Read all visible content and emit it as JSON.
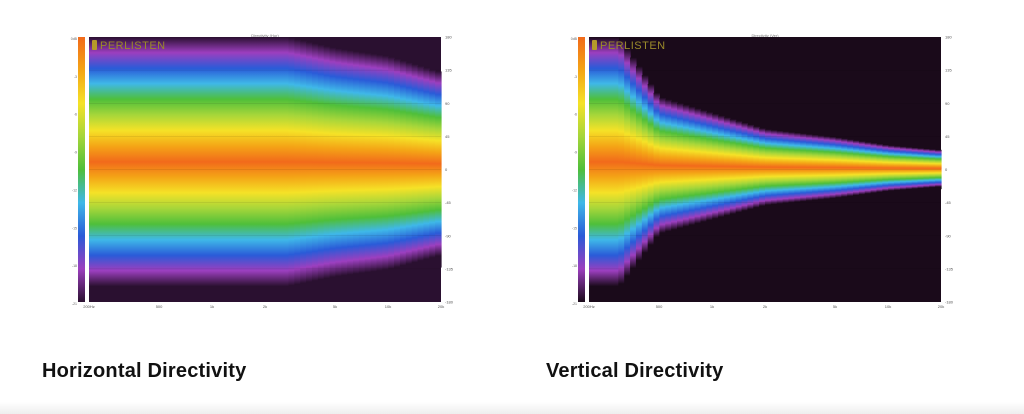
{
  "charts": [
    {
      "id": "horizontal",
      "caption": "Horizontal Directivity",
      "brand": "PERLISTEN"
    },
    {
      "id": "vertical",
      "caption": "Vertical Directivity",
      "brand": "PERLISTEN"
    }
  ],
  "chart_data": [
    {
      "type": "heatmap",
      "title": "Directivity (Hor)",
      "x_ticks": [
        "200Hz",
        "500",
        "1k",
        "2k",
        "5k",
        "10k",
        "20k"
      ],
      "y_ticks": [
        "180",
        "135",
        "90",
        "45",
        "0",
        "-45",
        "-90",
        "-135",
        "-180"
      ],
      "colorbar_ticks": [
        "0dB",
        "-3",
        "-6",
        "-9",
        "-12",
        "-15",
        "-18",
        "-21"
      ],
      "xlim": [
        200,
        20000
      ],
      "ylim": [
        -180,
        180
      ],
      "x_scale": "log",
      "colorscale": [
        "#f26a1b",
        "#f4a516",
        "#f5e227",
        "#a6d63a",
        "#4fbf3a",
        "#3fb8e8",
        "#2a5bd8",
        "#9c3fbf",
        "#2a1030"
      ],
      "coverage_deg": [
        {
          "freq": 200,
          "half_width": 150
        },
        {
          "freq": 500,
          "half_width": 125
        },
        {
          "freq": 1000,
          "half_width": 100
        },
        {
          "freq": 2000,
          "half_width": 85
        },
        {
          "freq": 5000,
          "half_width": 75
        },
        {
          "freq": 10000,
          "half_width": 70
        },
        {
          "freq": 20000,
          "half_width": 60
        }
      ]
    },
    {
      "type": "heatmap",
      "title": "Directivity (Ver)",
      "x_ticks": [
        "200Hz",
        "500",
        "1k",
        "2k",
        "5k",
        "10k",
        "20k"
      ],
      "y_ticks": [
        "180",
        "135",
        "90",
        "45",
        "0",
        "-45",
        "-90",
        "-135",
        "-180"
      ],
      "colorbar_ticks": [
        "0dB",
        "-3",
        "-6",
        "-9",
        "-12",
        "-15",
        "-18",
        "-21"
      ],
      "xlim": [
        200,
        20000
      ],
      "ylim": [
        -180,
        180
      ],
      "x_scale": "log",
      "colorscale": [
        "#f26a1b",
        "#f4a516",
        "#f5e227",
        "#a6d63a",
        "#4fbf3a",
        "#3fb8e8",
        "#2a5bd8",
        "#9c3fbf",
        "#1a0a1a"
      ],
      "coverage_deg": [
        {
          "freq": 200,
          "half_width": 110
        },
        {
          "freq": 500,
          "half_width": 45
        },
        {
          "freq": 1000,
          "half_width": 35
        },
        {
          "freq": 2000,
          "half_width": 25
        },
        {
          "freq": 5000,
          "half_width": 20
        },
        {
          "freq": 10000,
          "half_width": 15
        },
        {
          "freq": 20000,
          "half_width": 12
        }
      ]
    }
  ]
}
